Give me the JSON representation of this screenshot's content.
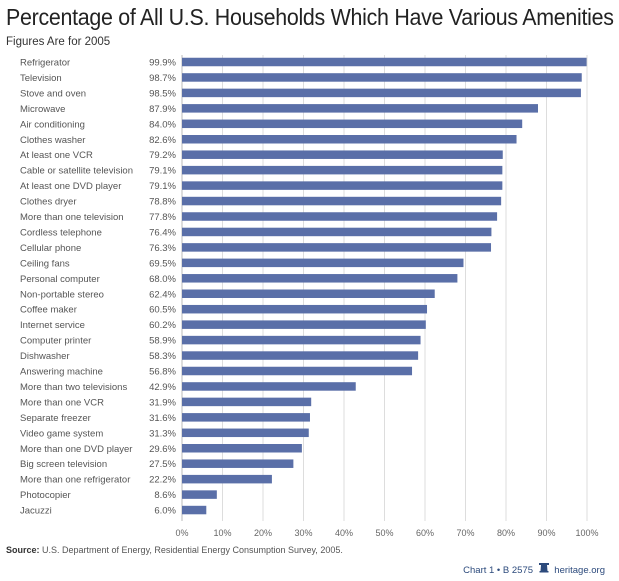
{
  "header": {
    "title": "Percentage of All U.S. Households Which Have Various Amenities",
    "subtitle": "Figures Are for 2005"
  },
  "footer": {
    "source_label": "Source:",
    "source_text": " U.S. Department of Energy, Residential Energy Consumption Survey, 2005.",
    "chart_id": "Chart 1 • B 2575",
    "bell_icon": "liberty-bell-icon",
    "site": "heritage.org"
  },
  "chart_data": {
    "type": "bar",
    "orientation": "horizontal",
    "title": "Percentage of All U.S. Households Which Have Various Amenities",
    "subtitle": "Figures Are for 2005",
    "xlabel": "",
    "ylabel": "",
    "xlim": [
      0,
      100
    ],
    "grid": true,
    "bar_color": "#5a6fa8",
    "tick_labels": [
      "0%",
      "10%",
      "20%",
      "30%",
      "40%",
      "50%",
      "60%",
      "70%",
      "80%",
      "90%",
      "100%"
    ],
    "categories": [
      "Refrigerator",
      "Television",
      "Stove and oven",
      "Microwave",
      "Air conditioning",
      "Clothes washer",
      "At least one VCR",
      "Cable or satellite television",
      "At least one DVD player",
      "Clothes dryer",
      "More than one television",
      "Cordless telephone",
      "Cellular phone",
      "Ceiling fans",
      "Personal computer",
      "Non-portable stereo",
      "Coffee maker",
      "Internet service",
      "Computer printer",
      "Dishwasher",
      "Answering machine",
      "More than two televisions",
      "More than one VCR",
      "Separate freezer",
      "Video game system",
      "More than one DVD player",
      "Big screen television",
      "More than one refrigerator",
      "Photocopier",
      "Jacuzzi"
    ],
    "values": [
      99.9,
      98.7,
      98.5,
      87.9,
      84.0,
      82.6,
      79.2,
      79.1,
      79.1,
      78.8,
      77.8,
      76.4,
      76.3,
      69.5,
      68.0,
      62.4,
      60.5,
      60.2,
      58.9,
      58.3,
      56.8,
      42.9,
      31.9,
      31.6,
      31.3,
      29.6,
      27.5,
      22.2,
      8.6,
      6.0
    ],
    "value_labels": [
      "99.9%",
      "98.7%",
      "98.5%",
      "87.9%",
      "84.0%",
      "82.6%",
      "79.2%",
      "79.1%",
      "79.1%",
      "78.8%",
      "77.8%",
      "76.4%",
      "76.3%",
      "69.5%",
      "68.0%",
      "62.4%",
      "60.5%",
      "60.2%",
      "58.9%",
      "58.3%",
      "56.8%",
      "42.9%",
      "31.9%",
      "31.6%",
      "31.3%",
      "29.6%",
      "27.5%",
      "22.2%",
      "8.6%",
      "6.0%"
    ]
  }
}
